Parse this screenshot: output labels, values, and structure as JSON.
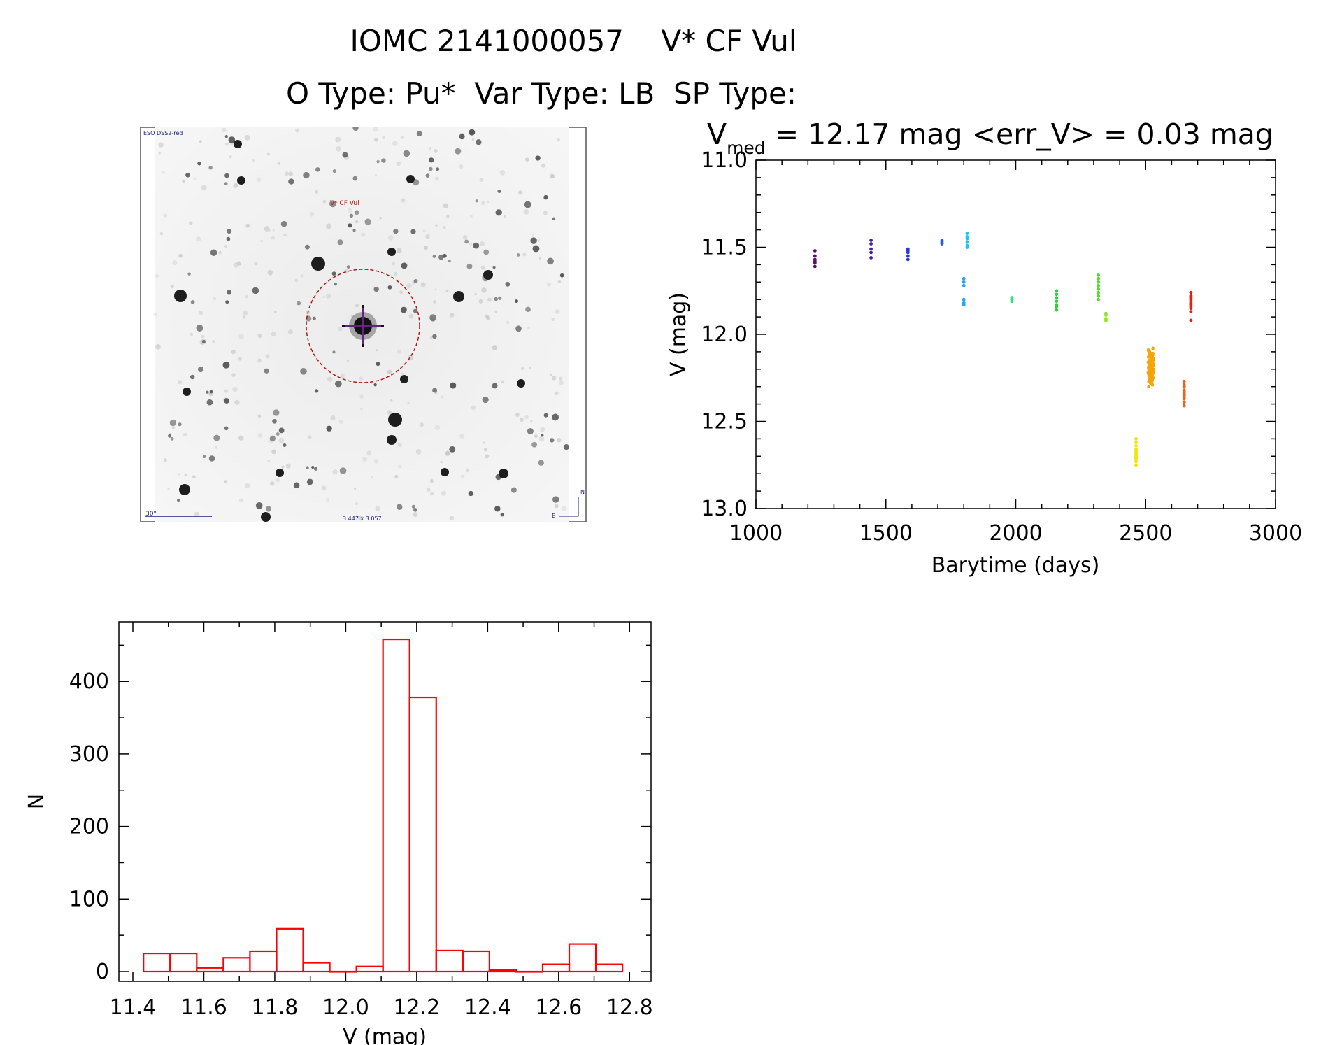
{
  "header": {
    "title": "IOMC 2141000057    V* CF Vul",
    "subtitle": "O Type: Pu*  Var Type: LB  SP Type:"
  },
  "image_panel": {
    "survey_label": "ESO DSS2-red",
    "target_label": "V* CF Vul",
    "scale_label": "30\"",
    "size_label": "3.447 x 3.057",
    "compass_north": "N",
    "compass_east": "E"
  },
  "stats": {
    "v_symbol": "V",
    "v_subscript": "med",
    "text": " = 12.17 mag <err_V> = 0.03 mag"
  },
  "colors": {
    "histogram": "#ff0000",
    "series": [
      "#5a0f70",
      "#4a1ea0",
      "#2a3ad8",
      "#1f5fe6",
      "#1ea8f0",
      "#18c8f4",
      "#2fe07a",
      "#2ed23c",
      "#4ede24",
      "#8be81c",
      "#f0e600",
      "#f5a40a",
      "#f56014",
      "#ee1c10"
    ]
  },
  "chart_data": [
    {
      "type": "scatter",
      "xlabel": "Barytime (days)",
      "ylabel": "V (mag)",
      "xlim": [
        1000,
        3000
      ],
      "ylim": [
        13.0,
        11.0
      ],
      "y_inverted": true,
      "x_ticks": [
        "1000",
        "1500",
        "2000",
        "2500",
        "3000"
      ],
      "y_ticks": [
        "11.0",
        "11.5",
        "12.0",
        "12.5",
        "13.0"
      ],
      "series": [
        {
          "x": [
            1227,
            1227,
            1227,
            1227,
            1227,
            1227
          ],
          "y": [
            11.52,
            11.55,
            11.57,
            11.58,
            11.59,
            11.61
          ]
        },
        {
          "x": [
            1443,
            1443,
            1443,
            1443,
            1443
          ],
          "y": [
            11.46,
            11.48,
            11.51,
            11.53,
            11.56
          ]
        },
        {
          "x": [
            1585,
            1585,
            1585,
            1585,
            1585
          ],
          "y": [
            11.51,
            11.52,
            11.53,
            11.55,
            11.57
          ]
        },
        {
          "x": [
            1716,
            1716,
            1716
          ],
          "y": [
            11.46,
            11.47,
            11.48
          ]
        },
        {
          "x": [
            1800,
            1800,
            1800,
            1800,
            1800,
            1800
          ],
          "y": [
            11.68,
            11.7,
            11.72,
            11.8,
            11.82,
            11.83
          ]
        },
        {
          "x": [
            1813,
            1813,
            1813,
            1813,
            1813,
            1813
          ],
          "y": [
            11.42,
            11.44,
            11.45,
            11.47,
            11.49,
            11.5
          ]
        },
        {
          "x": [
            1985,
            1985,
            1985
          ],
          "y": [
            11.79,
            11.8,
            11.81
          ]
        },
        {
          "x": [
            2157,
            2157,
            2157,
            2157,
            2157,
            2157,
            2157
          ],
          "y": [
            11.75,
            11.77,
            11.79,
            11.81,
            11.83,
            11.84,
            11.86
          ]
        },
        {
          "x": [
            2318,
            2318,
            2318,
            2318,
            2318,
            2318,
            2318,
            2318
          ],
          "y": [
            11.66,
            11.68,
            11.7,
            11.72,
            11.74,
            11.76,
            11.78,
            11.8
          ]
        },
        {
          "x": [
            2347,
            2347,
            2347,
            2347
          ],
          "y": [
            11.88,
            11.89,
            11.91,
            11.92
          ]
        },
        {
          "x": [
            2463,
            2463,
            2463,
            2463,
            2463,
            2463,
            2463,
            2463,
            2463,
            2463,
            2463,
            2463
          ],
          "y": [
            12.6,
            12.62,
            12.64,
            12.66,
            12.67,
            12.68,
            12.69,
            12.7,
            12.71,
            12.72,
            12.73,
            12.75
          ]
        },
        {
          "x": [
            2510,
            2513,
            2516,
            2519,
            2522,
            2525,
            2528,
            2511,
            2514,
            2517,
            2520,
            2523,
            2526,
            2529,
            2512,
            2515,
            2518,
            2521,
            2524,
            2527,
            2530,
            2510,
            2513,
            2516,
            2519,
            2522,
            2525,
            2528,
            2511,
            2514,
            2517,
            2520,
            2523,
            2526,
            2529,
            2512,
            2515,
            2518,
            2521,
            2524,
            2527,
            2530,
            2510,
            2513,
            2516,
            2519,
            2522,
            2525,
            2528,
            2511,
            2514,
            2517,
            2520,
            2523,
            2526,
            2529,
            2512,
            2515,
            2518,
            2521,
            2524,
            2527,
            2530,
            2514,
            2520,
            2526,
            2512,
            2528
          ],
          "y": [
            12.09,
            12.1,
            12.11,
            12.12,
            12.13,
            12.14,
            12.15,
            12.16,
            12.17,
            12.18,
            12.19,
            12.2,
            12.21,
            12.22,
            12.23,
            12.24,
            12.25,
            12.26,
            12.27,
            12.12,
            12.14,
            12.16,
            12.18,
            12.2,
            12.22,
            12.24,
            12.26,
            12.11,
            12.13,
            12.15,
            12.17,
            12.19,
            12.21,
            12.23,
            12.25,
            12.27,
            12.1,
            12.12,
            12.14,
            12.16,
            12.18,
            12.2,
            12.22,
            12.24,
            12.26,
            12.28,
            12.13,
            12.15,
            12.17,
            12.19,
            12.21,
            12.23,
            12.25,
            12.11,
            12.14,
            12.17,
            12.2,
            12.23,
            12.26,
            12.16,
            12.19,
            12.22,
            12.18,
            12.21,
            12.24,
            12.29,
            12.3,
            12.08
          ]
        },
        {
          "x": [
            2648,
            2648,
            2648,
            2648,
            2648,
            2648,
            2648,
            2648,
            2648,
            2648,
            2648
          ],
          "y": [
            12.27,
            12.29,
            12.3,
            12.32,
            12.33,
            12.34,
            12.35,
            12.36,
            12.37,
            12.39,
            12.41
          ]
        },
        {
          "x": [
            2674,
            2674,
            2674,
            2674,
            2674,
            2674,
            2674,
            2674,
            2674,
            2674,
            2674
          ],
          "y": [
            11.76,
            11.78,
            11.79,
            11.8,
            11.81,
            11.82,
            11.83,
            11.84,
            11.85,
            11.87,
            11.92
          ]
        }
      ]
    },
    {
      "type": "bar",
      "subtype": "histogram",
      "xlabel": "V (mag)",
      "ylabel": "N",
      "xlim": [
        11.4,
        12.9
      ],
      "ylim": [
        0,
        460
      ],
      "x_ticks": [
        "11.4",
        "11.6",
        "11.8",
        "12.0",
        "12.2",
        "12.4",
        "12.6",
        "12.8"
      ],
      "y_ticks": [
        "0",
        "100",
        "200",
        "300",
        "400"
      ],
      "bin_edges": [
        11.43,
        11.505,
        11.58,
        11.655,
        11.73,
        11.805,
        11.88,
        11.955,
        12.03,
        12.105,
        12.18,
        12.255,
        12.33,
        12.405,
        12.48,
        12.555,
        12.63,
        12.705,
        12.78
      ],
      "counts": [
        25,
        25,
        5,
        19,
        28,
        59,
        12,
        0,
        7,
        458,
        378,
        29,
        28,
        2,
        0,
        10,
        38,
        10
      ]
    }
  ]
}
